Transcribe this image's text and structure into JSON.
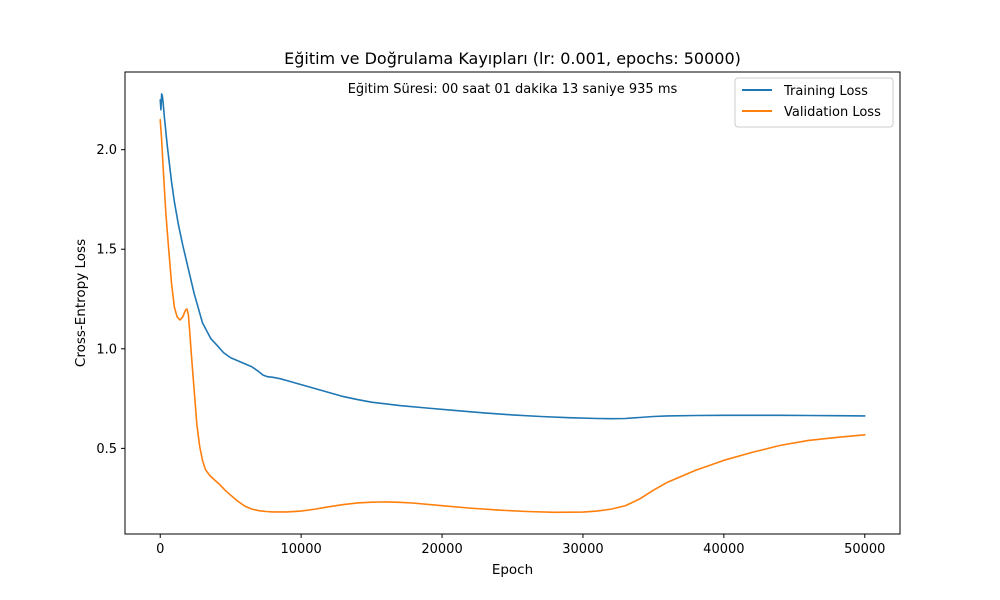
{
  "chart_data": {
    "type": "line",
    "title": "Eğitim ve Doğrulama Kayıpları (lr: 0.001, epochs: 50000)",
    "annotation": "Eğitim Süresi: 00 saat 01 dakika 13 saniye 935 ms",
    "xlabel": "Epoch",
    "ylabel": "Cross-Entropy Loss",
    "xlim": [
      -2500,
      52500
    ],
    "ylim": [
      0.07,
      2.39
    ],
    "xticks": [
      0,
      10000,
      20000,
      30000,
      40000,
      50000
    ],
    "xtick_labels": [
      "0",
      "10000",
      "20000",
      "30000",
      "40000",
      "50000"
    ],
    "yticks": [
      0.5,
      1.0,
      1.5,
      2.0
    ],
    "ytick_labels": [
      "0.5",
      "1.0",
      "1.5",
      "2.0"
    ],
    "grid": false,
    "legend": "top-right",
    "series": [
      {
        "name": "Training Loss",
        "color": "#1f77b4",
        "x": [
          0,
          50,
          100,
          150,
          200,
          300,
          500,
          800,
          1000,
          1300,
          1600,
          2000,
          2400,
          2800,
          3000,
          3300,
          3600,
          4000,
          4500,
          5000,
          5500,
          6000,
          6500,
          7000,
          7300,
          7600,
          8000,
          8500,
          9000,
          10000,
          11000,
          12000,
          13000,
          14000,
          15000,
          17000,
          19000,
          21000,
          23000,
          25000,
          27000,
          29000,
          31000,
          32000,
          33000,
          34000,
          35000,
          36000,
          38000,
          40000,
          42000,
          44000,
          46000,
          48000,
          50000
        ],
        "y": [
          2.25,
          2.2,
          2.28,
          2.27,
          2.24,
          2.16,
          2.02,
          1.84,
          1.74,
          1.62,
          1.52,
          1.4,
          1.28,
          1.18,
          1.13,
          1.09,
          1.05,
          1.02,
          0.98,
          0.955,
          0.94,
          0.925,
          0.91,
          0.885,
          0.868,
          0.86,
          0.857,
          0.85,
          0.84,
          0.82,
          0.8,
          0.78,
          0.76,
          0.745,
          0.732,
          0.715,
          0.702,
          0.69,
          0.678,
          0.668,
          0.66,
          0.654,
          0.65,
          0.649,
          0.65,
          0.655,
          0.66,
          0.663,
          0.665,
          0.666,
          0.666,
          0.666,
          0.665,
          0.664,
          0.663
        ]
      },
      {
        "name": "Validation Loss",
        "color": "#ff7f0e",
        "x": [
          0,
          100,
          200,
          300,
          400,
          600,
          800,
          1000,
          1200,
          1400,
          1600,
          1800,
          1900,
          2000,
          2100,
          2200,
          2400,
          2600,
          2800,
          3000,
          3200,
          3500,
          3800,
          4200,
          4600,
          5000,
          5500,
          6000,
          6500,
          7000,
          7500,
          8000,
          9000,
          10000,
          11000,
          12000,
          13000,
          14000,
          15000,
          16000,
          17000,
          18000,
          20000,
          22000,
          24000,
          26000,
          28000,
          30000,
          31000,
          32000,
          33000,
          34000,
          35000,
          36000,
          38000,
          40000,
          42000,
          44000,
          46000,
          48000,
          50000
        ],
        "y": [
          2.15,
          2.05,
          1.92,
          1.8,
          1.68,
          1.5,
          1.33,
          1.21,
          1.16,
          1.145,
          1.16,
          1.195,
          1.2,
          1.17,
          1.08,
          0.98,
          0.8,
          0.62,
          0.51,
          0.44,
          0.395,
          0.365,
          0.345,
          0.32,
          0.29,
          0.265,
          0.235,
          0.21,
          0.195,
          0.187,
          0.183,
          0.181,
          0.181,
          0.185,
          0.195,
          0.207,
          0.218,
          0.226,
          0.23,
          0.231,
          0.229,
          0.225,
          0.212,
          0.2,
          0.19,
          0.183,
          0.179,
          0.18,
          0.185,
          0.195,
          0.212,
          0.245,
          0.29,
          0.33,
          0.39,
          0.44,
          0.48,
          0.515,
          0.54,
          0.555,
          0.568
        ]
      }
    ]
  }
}
